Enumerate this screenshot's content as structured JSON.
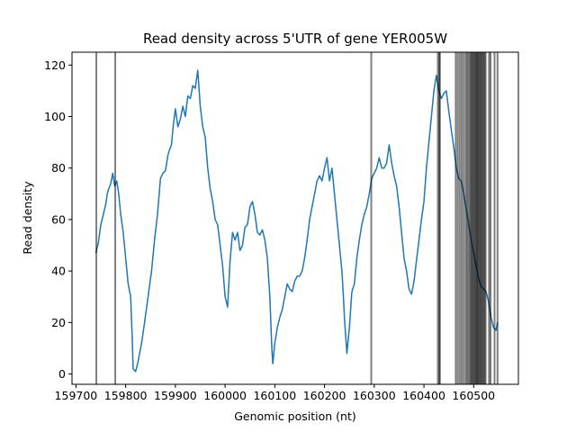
{
  "chart_data": {
    "type": "line",
    "title": "Read density across 5'UTR of gene YER005W",
    "xlabel": "Genomic position (nt)",
    "ylabel": "Read density",
    "xlim": [
      159692,
      160590
    ],
    "ylim": [
      -4,
      125
    ],
    "xticks": [
      159700,
      159800,
      159900,
      160000,
      160100,
      160200,
      160300,
      160400,
      160500
    ],
    "yticks": [
      0,
      20,
      40,
      60,
      80,
      100,
      120
    ],
    "series": [
      {
        "name": "read density",
        "color": "#1f77b4",
        "points": [
          [
            159740,
            47
          ],
          [
            159745,
            51
          ],
          [
            159750,
            58
          ],
          [
            159755,
            62
          ],
          [
            159760,
            66
          ],
          [
            159763,
            70
          ],
          [
            159766,
            72
          ],
          [
            159770,
            74
          ],
          [
            159774,
            78
          ],
          [
            159778,
            73
          ],
          [
            159782,
            75
          ],
          [
            159786,
            70
          ],
          [
            159790,
            62
          ],
          [
            159795,
            55
          ],
          [
            159800,
            45
          ],
          [
            159805,
            35
          ],
          [
            159810,
            30
          ],
          [
            159813,
            15
          ],
          [
            159815,
            2
          ],
          [
            159820,
            1
          ],
          [
            159824,
            4
          ],
          [
            159828,
            8
          ],
          [
            159832,
            12
          ],
          [
            159838,
            20
          ],
          [
            159845,
            30
          ],
          [
            159852,
            40
          ],
          [
            159858,
            52
          ],
          [
            159864,
            62
          ],
          [
            159870,
            76
          ],
          [
            159875,
            78
          ],
          [
            159880,
            79
          ],
          [
            159885,
            85
          ],
          [
            159888,
            87
          ],
          [
            159892,
            89
          ],
          [
            159896,
            97
          ],
          [
            159900,
            103
          ],
          [
            159905,
            96
          ],
          [
            159910,
            99
          ],
          [
            159915,
            104
          ],
          [
            159920,
            100
          ],
          [
            159925,
            108
          ],
          [
            159930,
            107
          ],
          [
            159935,
            112
          ],
          [
            159940,
            111
          ],
          [
            159945,
            118
          ],
          [
            159950,
            104
          ],
          [
            159955,
            96
          ],
          [
            159960,
            92
          ],
          [
            159965,
            80
          ],
          [
            159970,
            72
          ],
          [
            159975,
            67
          ],
          [
            159980,
            60
          ],
          [
            159985,
            58
          ],
          [
            159990,
            50
          ],
          [
            159995,
            42
          ],
          [
            160000,
            30
          ],
          [
            160005,
            26
          ],
          [
            160010,
            44
          ],
          [
            160015,
            55
          ],
          [
            160020,
            52
          ],
          [
            160025,
            55
          ],
          [
            160030,
            48
          ],
          [
            160035,
            50
          ],
          [
            160040,
            57
          ],
          [
            160045,
            58
          ],
          [
            160050,
            65
          ],
          [
            160055,
            67
          ],
          [
            160060,
            62
          ],
          [
            160065,
            55
          ],
          [
            160070,
            54
          ],
          [
            160075,
            56
          ],
          [
            160080,
            52
          ],
          [
            160085,
            45
          ],
          [
            160090,
            30
          ],
          [
            160094,
            10
          ],
          [
            160096,
            4
          ],
          [
            160100,
            12
          ],
          [
            160105,
            18
          ],
          [
            160110,
            22
          ],
          [
            160115,
            25
          ],
          [
            160120,
            30
          ],
          [
            160125,
            35
          ],
          [
            160130,
            33
          ],
          [
            160135,
            32
          ],
          [
            160140,
            36
          ],
          [
            160145,
            38
          ],
          [
            160150,
            38
          ],
          [
            160155,
            40
          ],
          [
            160160,
            45
          ],
          [
            160165,
            52
          ],
          [
            160170,
            60
          ],
          [
            160175,
            65
          ],
          [
            160180,
            70
          ],
          [
            160185,
            75
          ],
          [
            160190,
            77
          ],
          [
            160195,
            75
          ],
          [
            160200,
            80
          ],
          [
            160205,
            84
          ],
          [
            160210,
            75
          ],
          [
            160215,
            80
          ],
          [
            160220,
            70
          ],
          [
            160225,
            60
          ],
          [
            160230,
            50
          ],
          [
            160235,
            40
          ],
          [
            160238,
            30
          ],
          [
            160240,
            22
          ],
          [
            160245,
            8
          ],
          [
            160250,
            18
          ],
          [
            160255,
            32
          ],
          [
            160260,
            35
          ],
          [
            160265,
            45
          ],
          [
            160270,
            52
          ],
          [
            160275,
            58
          ],
          [
            160280,
            62
          ],
          [
            160285,
            65
          ],
          [
            160290,
            70
          ],
          [
            160295,
            76
          ],
          [
            160300,
            78
          ],
          [
            160305,
            80
          ],
          [
            160310,
            84
          ],
          [
            160315,
            80
          ],
          [
            160320,
            80
          ],
          [
            160325,
            82
          ],
          [
            160330,
            89
          ],
          [
            160335,
            82
          ],
          [
            160340,
            77
          ],
          [
            160345,
            73
          ],
          [
            160350,
            65
          ],
          [
            160355,
            55
          ],
          [
            160360,
            45
          ],
          [
            160365,
            40
          ],
          [
            160370,
            33
          ],
          [
            160375,
            31
          ],
          [
            160380,
            36
          ],
          [
            160385,
            44
          ],
          [
            160390,
            52
          ],
          [
            160395,
            60
          ],
          [
            160400,
            67
          ],
          [
            160405,
            80
          ],
          [
            160410,
            90
          ],
          [
            160415,
            100
          ],
          [
            160420,
            110
          ],
          [
            160425,
            116
          ],
          [
            160430,
            110
          ],
          [
            160435,
            107
          ],
          [
            160440,
            109
          ],
          [
            160445,
            110
          ],
          [
            160450,
            102
          ],
          [
            160455,
            95
          ],
          [
            160460,
            88
          ],
          [
            160465,
            80
          ],
          [
            160470,
            76
          ],
          [
            160475,
            75
          ],
          [
            160480,
            70
          ],
          [
            160485,
            64
          ],
          [
            160490,
            58
          ],
          [
            160495,
            52
          ],
          [
            160500,
            47
          ],
          [
            160505,
            42
          ],
          [
            160510,
            37
          ],
          [
            160515,
            34
          ],
          [
            160520,
            33
          ],
          [
            160525,
            32
          ],
          [
            160530,
            28
          ],
          [
            160535,
            22
          ],
          [
            160540,
            18
          ],
          [
            160545,
            17
          ],
          [
            160548,
            20
          ]
        ]
      }
    ],
    "vertical_lines": [
      159741,
      159779,
      160294,
      160428,
      160431,
      160432,
      160464,
      160468,
      160472,
      160476,
      160480,
      160484,
      160487,
      160490,
      160493,
      160495,
      160497,
      160499,
      160501,
      160503,
      160505,
      160507,
      160508,
      160510,
      160512,
      160514,
      160516,
      160518,
      160520,
      160522,
      160524,
      160531,
      160534,
      160542,
      160548
    ],
    "vertical_line_color": "#000000",
    "grid": false
  }
}
